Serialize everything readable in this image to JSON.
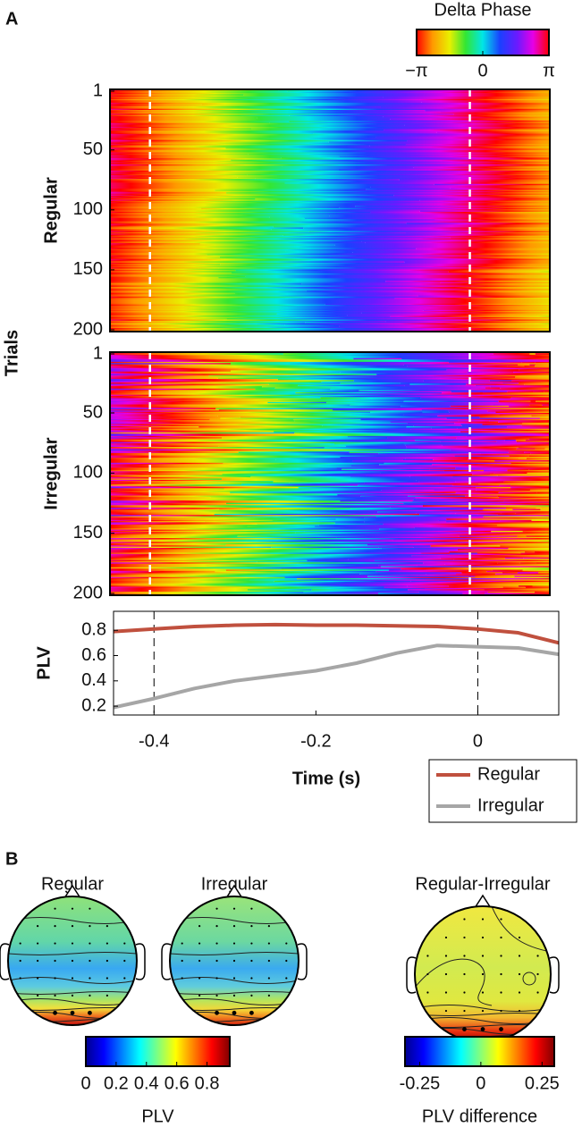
{
  "panel_labels": [
    "A",
    "B"
  ],
  "shared_ylabel": "Trials",
  "chart_data": [
    {
      "type": "colorbar",
      "title": "Delta Phase",
      "colormap": "hsv",
      "lim": [
        -3.1416,
        3.1416
      ],
      "ticks": [
        {
          "value": -3.1416,
          "label": "−π"
        },
        0,
        {
          "value": 3.1416,
          "label": "π"
        }
      ]
    },
    {
      "type": "raster",
      "ylabel": "Regular",
      "ylim": [
        1,
        200
      ],
      "yticks": [
        1,
        50,
        100,
        150,
        200
      ],
      "xlim": [
        -0.45,
        0.1
      ],
      "vlines": [
        -0.4,
        0
      ]
    },
    {
      "type": "raster",
      "ylabel": "Irregular",
      "ylim": [
        1,
        200
      ],
      "yticks": [
        1,
        50,
        100,
        150,
        200
      ],
      "xlim": [
        -0.45,
        0.1
      ],
      "vlines": [
        -0.4,
        0
      ]
    },
    {
      "type": "line",
      "ylabel": "PLV",
      "xlabel": "Time (s)",
      "x": [
        -0.45,
        -0.4,
        -0.35,
        -0.3,
        -0.25,
        -0.2,
        -0.15,
        -0.1,
        -0.05,
        0,
        0.05,
        0.1
      ],
      "series": [
        {
          "name": "Regular",
          "color": "#c0503e",
          "values": [
            0.79,
            0.81,
            0.83,
            0.84,
            0.845,
            0.84,
            0.84,
            0.835,
            0.83,
            0.81,
            0.78,
            0.7
          ]
        },
        {
          "name": "Irregular",
          "color": "#a6a6a6",
          "values": [
            0.19,
            0.26,
            0.34,
            0.4,
            0.44,
            0.48,
            0.54,
            0.62,
            0.68,
            0.67,
            0.66,
            0.61
          ]
        }
      ],
      "xlim": [
        -0.45,
        0.1
      ],
      "ylim": [
        0.13,
        0.95
      ],
      "xticks": [
        -0.4,
        -0.2,
        0
      ],
      "yticks": [
        0.2,
        0.4,
        0.6,
        0.8
      ],
      "vlines": [
        -0.4,
        0
      ],
      "legend": "bottom-right-outside"
    },
    {
      "type": "topomap",
      "title": "Regular"
    },
    {
      "type": "topomap",
      "title": "Irregular"
    },
    {
      "type": "topomap",
      "title": "Regular-Irregular"
    },
    {
      "type": "colorbar",
      "label": "PLV",
      "colormap": "jet",
      "lim": [
        0,
        0.95
      ],
      "ticks": [
        0,
        0.2,
        0.4,
        0.6,
        0.8
      ]
    },
    {
      "type": "colorbar",
      "label": "PLV difference",
      "colormap": "jet",
      "lim": [
        -0.31,
        0.3
      ],
      "ticks": [
        -0.25,
        0,
        0.25
      ]
    }
  ]
}
